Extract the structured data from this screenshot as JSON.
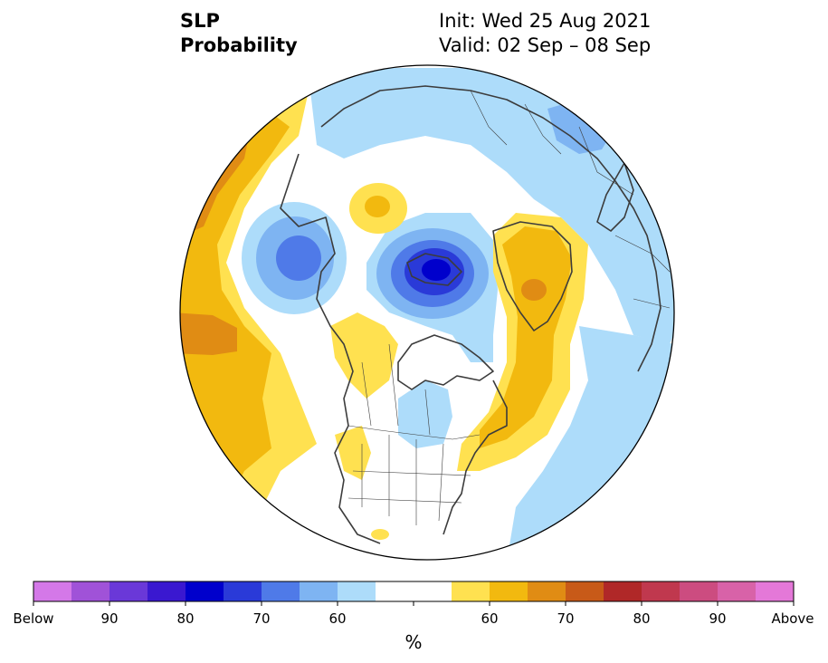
{
  "header": {
    "variable": "SLP",
    "product": "Probability",
    "init": "Init: Wed 25 Aug 2021",
    "valid": "Valid: 02 Sep – 08 Sep"
  },
  "map": {
    "projection": "north-polar-stereographic",
    "colors": {
      "below_90_plus": "#d478e8",
      "below_90": "#a052d8",
      "below_85": "#6a38d8",
      "below_80": "#3a18d0",
      "below_75": "#0000cc",
      "below_70": "#2a3ad8",
      "below_65": "#4f7ae8",
      "below_60": "#7eb4f2",
      "below_55": "#addcfa",
      "near_normal": "#ffffff",
      "above_55": "#ffe150",
      "above_60": "#f2b90f",
      "above_65": "#e08c14",
      "above_70": "#c85a18",
      "above_75": "#b02828",
      "above_80": "#c0384e",
      "above_85": "#cc4c80",
      "above_90": "#d862a8",
      "above_90_plus": "#e478d8",
      "coastline": "#3c3c3c"
    }
  },
  "colorbar": {
    "unit": "%",
    "tick_labels": [
      "Below",
      "90",
      "80",
      "70",
      "60",
      "60",
      "70",
      "80",
      "90",
      "Above"
    ],
    "bins": [
      "#d478e8",
      "#a052d8",
      "#6a38d8",
      "#3a18d0",
      "#0000cc",
      "#2a3ad8",
      "#4f7ae8",
      "#7eb4f2",
      "#addcfa",
      "#ffffff",
      "#ffffff",
      "#ffe150",
      "#f2b90f",
      "#e08c14",
      "#c85a18",
      "#b02828",
      "#c0384e",
      "#cc4c80",
      "#d862a8",
      "#e478d8"
    ]
  }
}
